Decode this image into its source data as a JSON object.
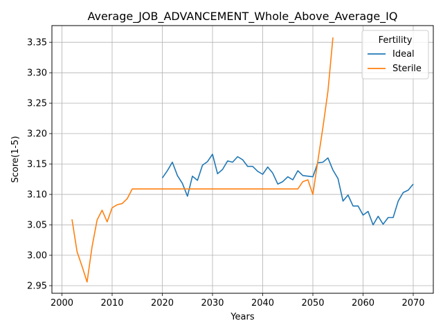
{
  "chart_data": {
    "type": "line",
    "title": "Average_JOB_ADVANCEMENT_Whole_Above_Average_IQ",
    "xlabel": "Years",
    "ylabel": "Score(1-5)",
    "xlim": [
      1998,
      2074
    ],
    "ylim": [
      2.9375,
      3.3775
    ],
    "xticks": [
      2000,
      2010,
      2020,
      2030,
      2040,
      2050,
      2060,
      2070
    ],
    "yticks": [
      2.95,
      3.0,
      3.05,
      3.1,
      3.15,
      3.2,
      3.25,
      3.3,
      3.35
    ],
    "yticklabels": [
      "2.95",
      "3.00",
      "3.05",
      "3.10",
      "3.15",
      "3.20",
      "3.25",
      "3.30",
      "3.35"
    ],
    "grid": true,
    "legend": {
      "title": "Fertility",
      "placement": "top-right"
    },
    "series": [
      {
        "name": "Ideal",
        "color": "#1f77b4",
        "x": [
          2020,
          2021,
          2022,
          2023,
          2024,
          2025,
          2026,
          2027,
          2028,
          2029,
          2030,
          2031,
          2032,
          2033,
          2034,
          2035,
          2036,
          2037,
          2038,
          2039,
          2040,
          2041,
          2042,
          2043,
          2044,
          2045,
          2046,
          2047,
          2048,
          2049,
          2050,
          2051,
          2052,
          2053,
          2054,
          2055,
          2056,
          2057,
          2058,
          2059,
          2060,
          2061,
          2062,
          2063,
          2064,
          2065,
          2066,
          2067,
          2068,
          2069,
          2070
        ],
        "y": [
          3.127,
          3.139,
          3.153,
          3.131,
          3.118,
          3.097,
          3.13,
          3.123,
          3.148,
          3.154,
          3.166,
          3.134,
          3.141,
          3.155,
          3.153,
          3.162,
          3.157,
          3.146,
          3.146,
          3.138,
          3.133,
          3.145,
          3.135,
          3.117,
          3.121,
          3.129,
          3.124,
          3.139,
          3.131,
          3.13,
          3.129,
          3.152,
          3.153,
          3.16,
          3.14,
          3.126,
          3.089,
          3.099,
          3.081,
          3.081,
          3.066,
          3.072,
          3.05,
          3.064,
          3.051,
          3.062,
          3.062,
          3.089,
          3.103,
          3.107,
          3.117
        ]
      },
      {
        "name": "Sterile",
        "color": "#ff7f0e",
        "x": [
          2002,
          2003,
          2004,
          2005,
          2006,
          2007,
          2008,
          2009,
          2010,
          2011,
          2012,
          2013,
          2014,
          2015,
          2020,
          2025,
          2030,
          2035,
          2040,
          2045,
          2047,
          2048,
          2049,
          2050,
          2051,
          2052,
          2053,
          2054
        ],
        "y": [
          3.059,
          3.006,
          2.982,
          2.956,
          3.014,
          3.058,
          3.074,
          3.055,
          3.078,
          3.083,
          3.085,
          3.093,
          3.109,
          3.109,
          3.109,
          3.109,
          3.109,
          3.109,
          3.109,
          3.109,
          3.109,
          3.121,
          3.124,
          3.1,
          3.155,
          3.21,
          3.27,
          3.358
        ]
      }
    ]
  }
}
